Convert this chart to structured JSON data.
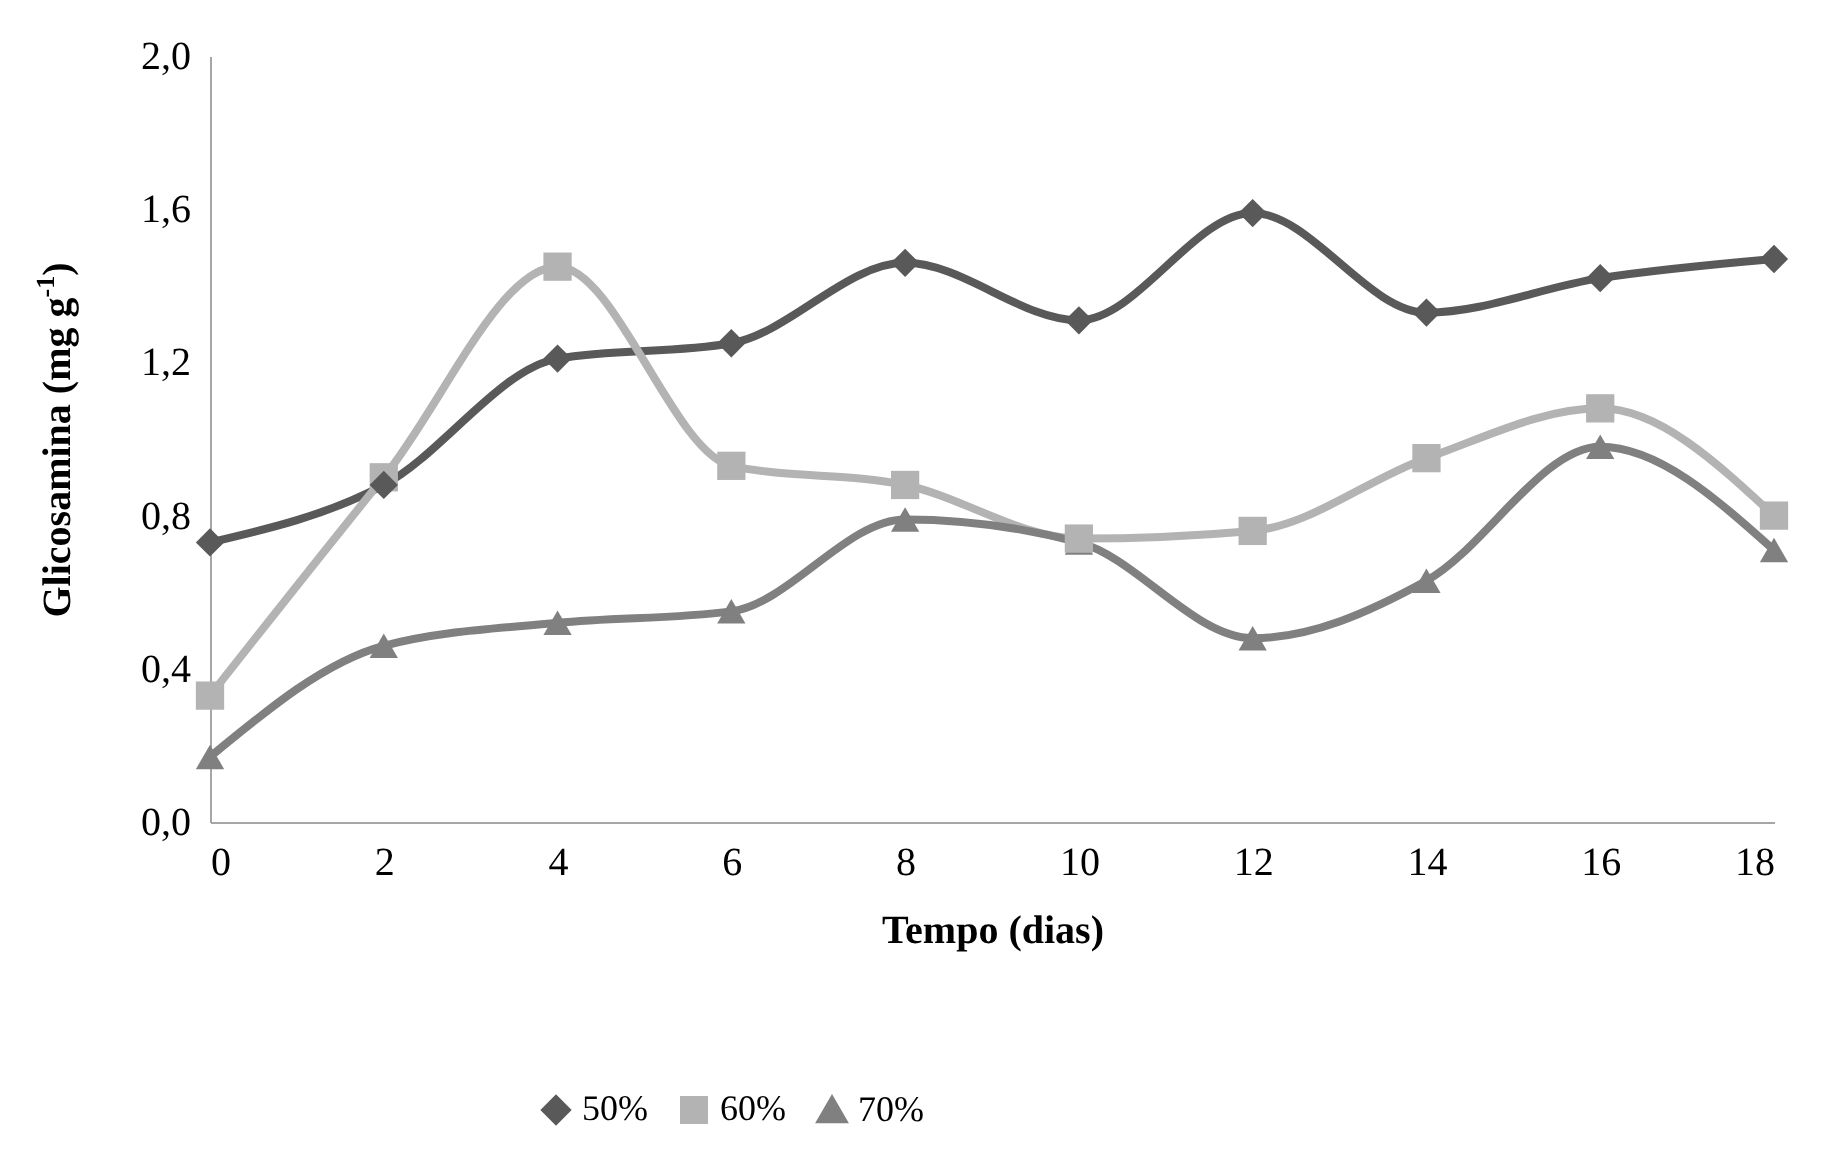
{
  "chart_data": {
    "type": "line",
    "xlabel": "Tempo (dias)",
    "ylabel": "Glicosamina (mg g$^{-1}$)",
    "x": [
      0,
      2,
      4,
      6,
      8,
      10,
      12,
      14,
      16,
      18
    ],
    "xlim": [
      0,
      18
    ],
    "xticks": [
      0,
      2,
      4,
      6,
      8,
      10,
      12,
      14,
      16,
      18
    ],
    "ylim": [
      0,
      2
    ],
    "yticks": [
      {
        "value": 0,
        "label": "0,0"
      },
      {
        "value": 0.4,
        "label": "0,4"
      },
      {
        "value": 0.8,
        "label": "0,8"
      },
      {
        "value": 1.2,
        "label": "1,2"
      },
      {
        "value": 1.6,
        "label": "1,6"
      },
      {
        "value": 2,
        "label": "2,0"
      }
    ],
    "grid": false,
    "legend": "bottom",
    "line_style": "solid",
    "series": [
      {
        "name": "50%",
        "color": "#595959",
        "marker": "diamond",
        "values": [
          0.73,
          0.88,
          1.21,
          1.25,
          1.46,
          1.31,
          1.59,
          1.33,
          1.42,
          1.47
        ]
      },
      {
        "name": "60%",
        "color": "#b3b3b3",
        "marker": "square",
        "values": [
          0.33,
          0.9,
          1.45,
          0.93,
          0.88,
          0.74,
          0.76,
          0.95,
          1.08,
          0.8
        ]
      },
      {
        "name": "70%",
        "color": "#808080",
        "marker": "triangle",
        "values": [
          0.17,
          0.46,
          0.52,
          0.55,
          0.79,
          0.73,
          0.48,
          0.63,
          0.98,
          0.71
        ]
      }
    ]
  }
}
